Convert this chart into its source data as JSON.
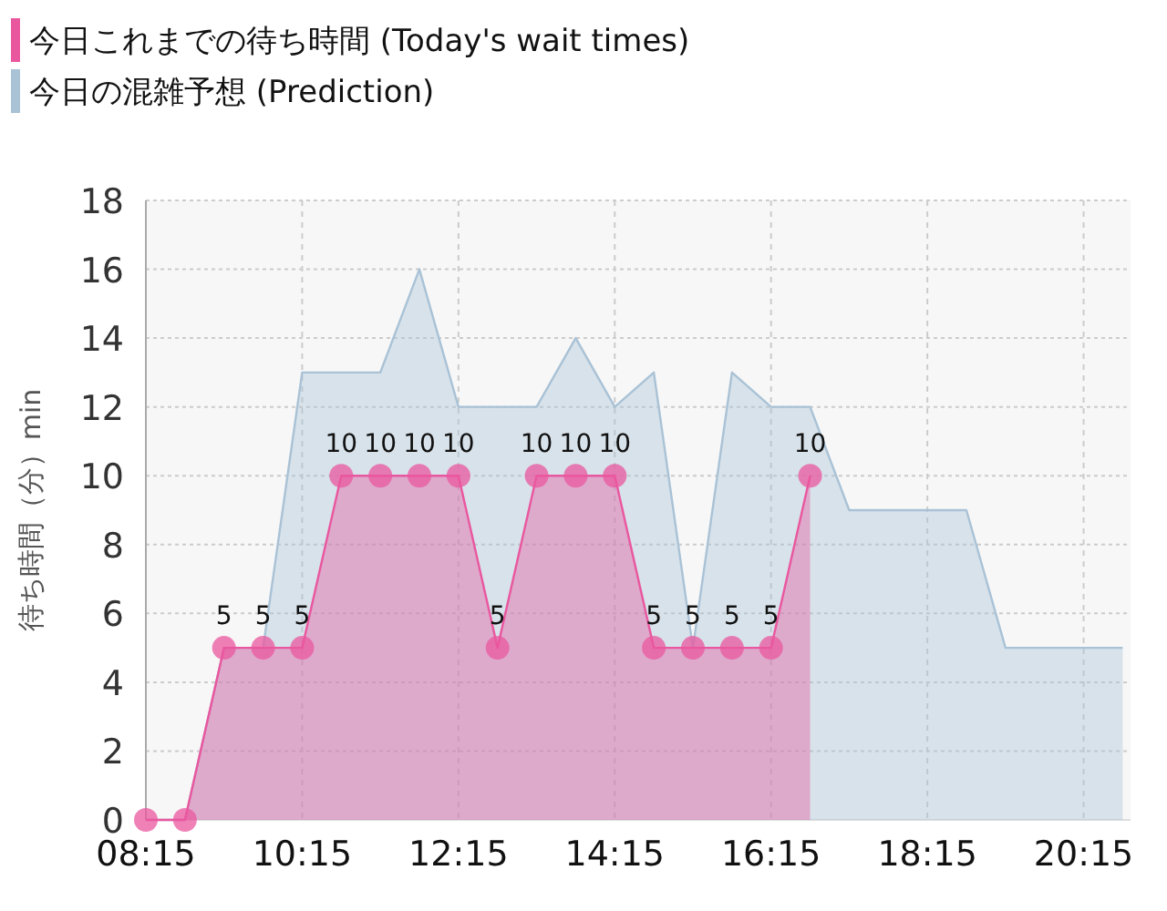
{
  "chart_data": {
    "type": "area",
    "ylabel": "待ち時間（分）min",
    "xlim": [
      8.25,
      20.85
    ],
    "xticks": [
      {
        "value": 8.25,
        "label": "08:15"
      },
      {
        "value": 10.25,
        "label": "10:15"
      },
      {
        "value": 12.25,
        "label": "12:15"
      },
      {
        "value": 14.25,
        "label": "14:15"
      },
      {
        "value": 16.25,
        "label": "16:15"
      },
      {
        "value": 18.25,
        "label": "18:15"
      },
      {
        "value": 20.25,
        "label": "20:15"
      }
    ],
    "ylim": [
      0,
      18
    ],
    "yticks": [
      0,
      2,
      4,
      6,
      8,
      10,
      12,
      14,
      16,
      18
    ],
    "grid": true,
    "legend": "top left",
    "series": [
      {
        "name": "今日の混雑予想 (Prediction)",
        "color": "#a9c2d6",
        "x": [
          8.25,
          8.75,
          9.25,
          9.75,
          10.25,
          10.75,
          11.25,
          11.75,
          12.25,
          12.75,
          13.25,
          13.75,
          14.25,
          14.75,
          15.25,
          15.75,
          16.25,
          16.75,
          17.25,
          17.75,
          18.25,
          18.75,
          19.25,
          19.75,
          20.25,
          20.75
        ],
        "values": [
          0,
          0,
          5,
          5,
          13,
          13,
          13,
          16,
          12,
          12,
          12,
          14,
          12,
          13,
          5,
          13,
          12,
          12,
          9,
          9,
          9,
          9,
          5,
          5,
          5,
          5
        ]
      },
      {
        "name": "今日これまでの待ち時間 (Today's wait times)",
        "color": "#e9579f",
        "marker": "circle",
        "x": [
          8.25,
          8.75,
          9.25,
          9.75,
          10.25,
          10.75,
          11.25,
          11.75,
          12.25,
          12.75,
          13.25,
          13.75,
          14.25,
          14.75,
          15.25,
          15.75,
          16.25,
          16.75
        ],
        "values": [
          0,
          0,
          5,
          5,
          5,
          10,
          10,
          10,
          10,
          5,
          10,
          10,
          10,
          5,
          5,
          5,
          5,
          10
        ],
        "value_labels": [
          null,
          null,
          "5",
          "5",
          "5",
          "10",
          "10",
          "10",
          "10",
          "5",
          "10",
          "10",
          "10",
          "5",
          "5",
          "5",
          "5",
          "10"
        ]
      }
    ]
  }
}
